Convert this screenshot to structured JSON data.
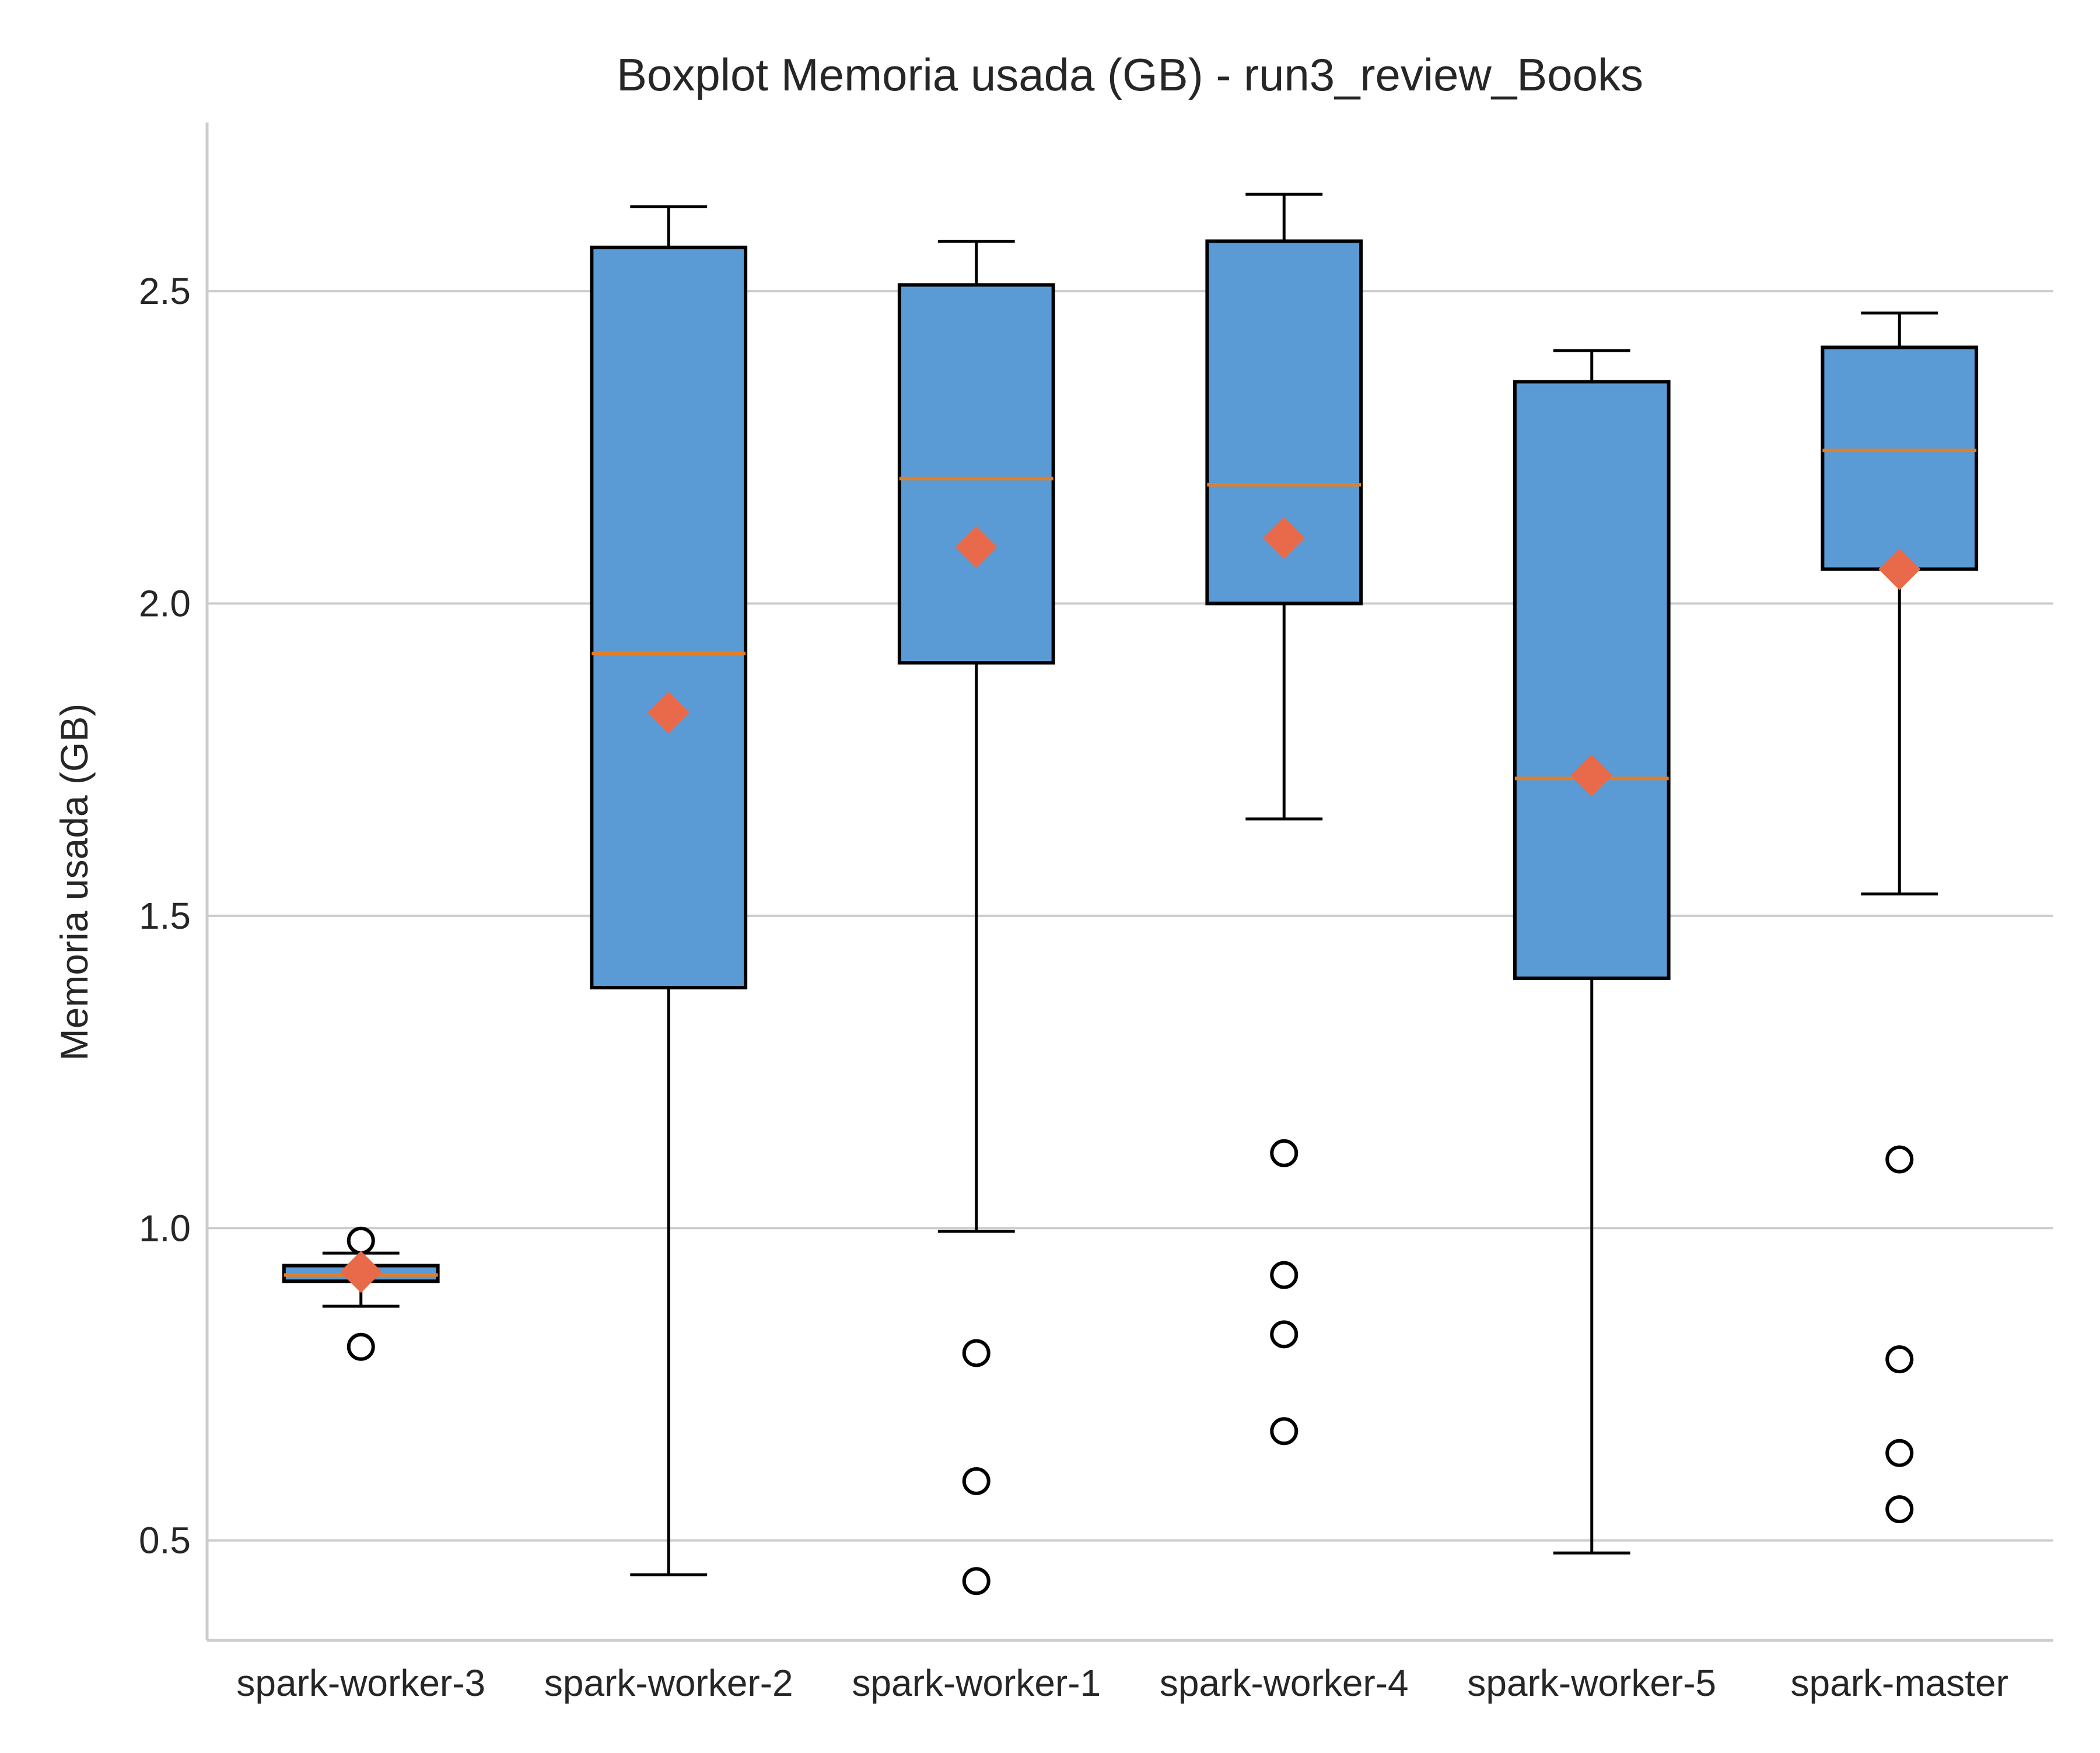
{
  "chart_data": {
    "type": "boxplot",
    "title": "Boxplot Memoria usada (GB) - run3_review_Books",
    "xlabel": "",
    "ylabel": "Memoria usada (GB)",
    "ylim": [
      0.34,
      2.77
    ],
    "yticks": [
      "0.5",
      "1.0",
      "1.5",
      "2.0",
      "2.5"
    ],
    "grid": "horizontal",
    "categories": [
      "spark-worker-3",
      "spark-worker-2",
      "spark-worker-1",
      "spark-worker-4",
      "spark-worker-5",
      "spark-master"
    ],
    "boxes": [
      {
        "whisker_low": 0.875,
        "q1": 0.915,
        "median": 0.925,
        "q3": 0.94,
        "whisker_high": 0.96,
        "mean": 0.93,
        "outliers": [
          0.81,
          0.98
        ]
      },
      {
        "whisker_low": 0.445,
        "q1": 1.385,
        "median": 1.92,
        "q3": 2.57,
        "whisker_high": 2.635,
        "mean": 1.825,
        "outliers": []
      },
      {
        "whisker_low": 0.995,
        "q1": 1.905,
        "median": 2.2,
        "q3": 2.51,
        "whisker_high": 2.58,
        "mean": 2.09,
        "outliers": [
          0.8,
          0.595,
          0.435
        ]
      },
      {
        "whisker_low": 1.655,
        "q1": 2.0,
        "median": 2.19,
        "q3": 2.58,
        "whisker_high": 2.655,
        "mean": 2.105,
        "outliers": [
          1.12,
          0.925,
          0.83,
          0.675
        ]
      },
      {
        "whisker_low": 0.48,
        "q1": 1.4,
        "median": 1.72,
        "q3": 2.355,
        "whisker_high": 2.405,
        "mean": 1.725,
        "outliers": []
      },
      {
        "whisker_low": 1.535,
        "q1": 2.055,
        "median": 2.245,
        "q3": 2.41,
        "whisker_high": 2.465,
        "mean": 2.055,
        "outliers": [
          1.11,
          0.79,
          0.64,
          0.55
        ]
      }
    ],
    "colors": {
      "box_fill": "#5b9bd5",
      "box_edge": "#000000",
      "median": "#e37e27",
      "mean_marker": "#e86a4a",
      "grid": "#cccccc",
      "spine": "#cccccc"
    }
  }
}
